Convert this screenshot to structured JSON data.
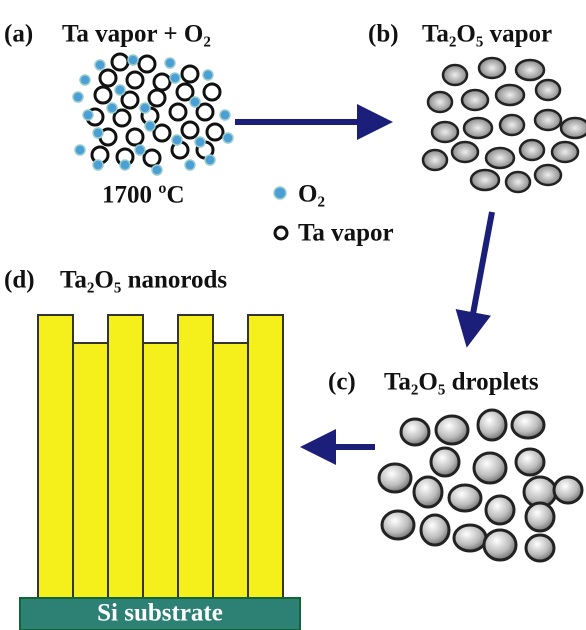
{
  "panels": [
    {
      "letter": "(a)",
      "title": "Ta vapor + O₂",
      "note": "1700 ºC"
    },
    {
      "letter": "(b)",
      "title": "Ta₂O₅ vapor"
    },
    {
      "letter": "(c)",
      "title": "Ta₂O₅ droplets"
    },
    {
      "letter": "(d)",
      "title": "Ta₂O₅ nanorods",
      "substrate": "Si substrate"
    }
  ],
  "legend": [
    {
      "label": "O₂"
    },
    {
      "label": "Ta vapor"
    }
  ]
}
